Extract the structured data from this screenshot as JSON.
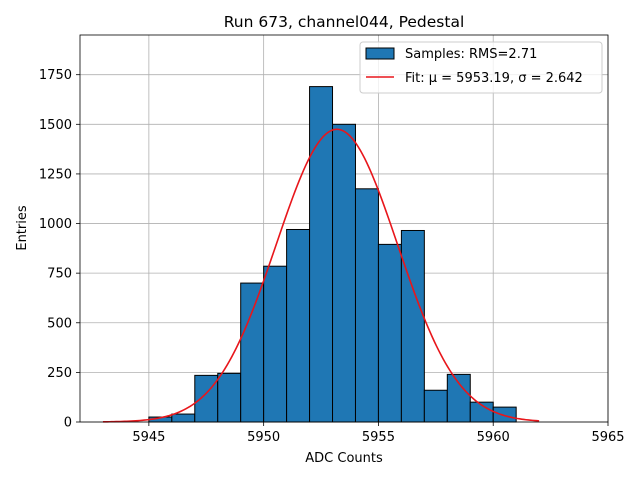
{
  "chart_data": {
    "type": "bar",
    "title": "Run 673, channel044, Pedestal",
    "xlabel": "ADC Counts",
    "ylabel": "Entries",
    "xlim": [
      5942.0,
      5965.0
    ],
    "ylim": [
      0,
      1950
    ],
    "xticks": [
      5945,
      5950,
      5955,
      5960,
      5965
    ],
    "yticks": [
      0,
      250,
      500,
      750,
      1000,
      1250,
      1500,
      1750
    ],
    "grid": true,
    "bin_width": 1,
    "bins": [
      {
        "x0": 5945,
        "value": 25
      },
      {
        "x0": 5946,
        "value": 40
      },
      {
        "x0": 5947,
        "value": 235
      },
      {
        "x0": 5948,
        "value": 245
      },
      {
        "x0": 5949,
        "value": 700
      },
      {
        "x0": 5950,
        "value": 785
      },
      {
        "x0": 5951,
        "value": 970
      },
      {
        "x0": 5952,
        "value": 1690
      },
      {
        "x0": 5953,
        "value": 1500
      },
      {
        "x0": 5954,
        "value": 1175
      },
      {
        "x0": 5955,
        "value": 895
      },
      {
        "x0": 5956,
        "value": 965
      },
      {
        "x0": 5957,
        "value": 160
      },
      {
        "x0": 5958,
        "value": 240
      },
      {
        "x0": 5959,
        "value": 100
      },
      {
        "x0": 5960,
        "value": 75
      }
    ],
    "fit": {
      "mu": 5953.19,
      "sigma": 2.642,
      "amplitude": 1475,
      "x_range": [
        5943.0,
        5962.0
      ]
    },
    "legend": {
      "position": "top-right",
      "entries": [
        {
          "name": "Samples: RMS=2.71",
          "kind": "bar",
          "color": "#1f77b4"
        },
        {
          "name": "Fit: μ = 5953.19, σ = 2.642",
          "kind": "line",
          "color": "#e8161b"
        }
      ]
    },
    "colors": {
      "bar_fill": "#1f77b4",
      "bar_edge": "#000000",
      "fit_line": "#e8161b",
      "grid": "#b0b0b0"
    }
  }
}
